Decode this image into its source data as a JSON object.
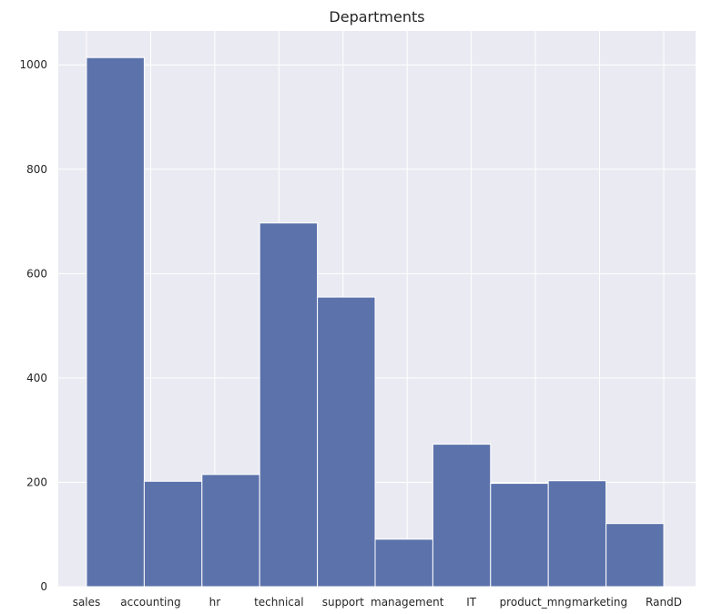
{
  "chart_data": {
    "type": "bar",
    "title": "Departments",
    "xlabel": "",
    "ylabel": "",
    "categories": [
      "sales",
      "accounting",
      "hr",
      "technical",
      "support",
      "management",
      "IT",
      "product_mng",
      "marketing",
      "RandD"
    ],
    "values": [
      1014,
      202,
      215,
      697,
      555,
      91,
      273,
      198,
      203,
      121
    ],
    "ylim": [
      0,
      1065
    ],
    "yticks": [
      0,
      200,
      400,
      600,
      800,
      1000
    ],
    "grid": true,
    "colors": {
      "bar": "#5b72ab",
      "bar_edge": "#ffffff",
      "background": "#eaeaf2",
      "grid": "#ffffff"
    }
  }
}
